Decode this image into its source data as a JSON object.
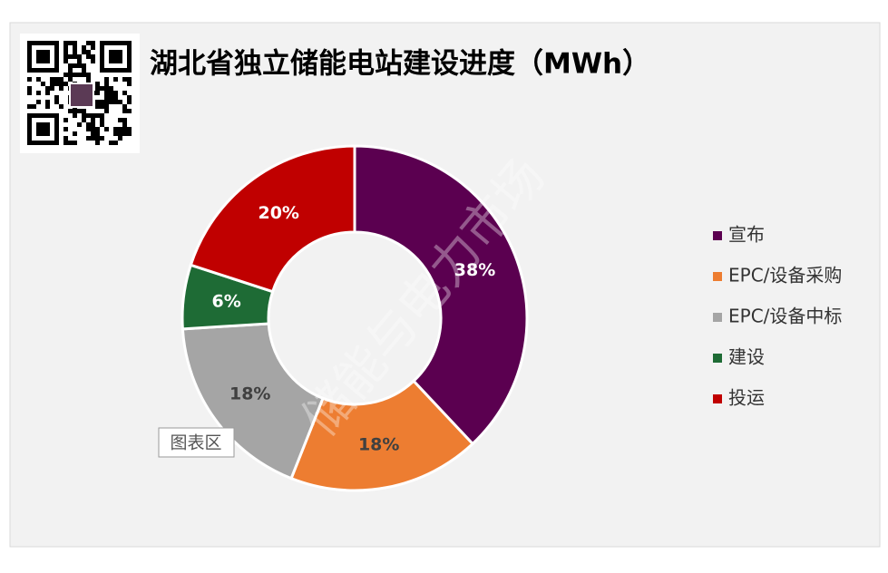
{
  "chart_data": {
    "type": "donut",
    "title": "湖北省独立储能电站建设进度（MWh）",
    "categories": [
      "宣布",
      "EPC/设备采购",
      "EPC/设备中标",
      "建设",
      "投运"
    ],
    "values": [
      38,
      18,
      18,
      6,
      20
    ],
    "value_labels": [
      "38%",
      "18%",
      "18%",
      "6%",
      "20%"
    ],
    "colors": [
      "#5b0050",
      "#ed7d31",
      "#a5a5a5",
      "#1e6b35",
      "#c00000"
    ],
    "legend": "right",
    "watermark": "储能与电力市场",
    "tooltip": "图表区"
  }
}
